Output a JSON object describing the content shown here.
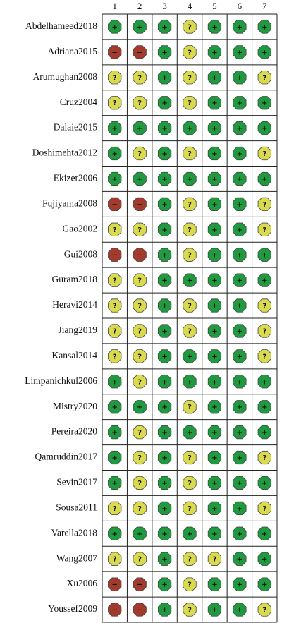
{
  "table": {
    "columns": [
      1,
      2,
      3,
      4,
      5,
      6,
      7
    ],
    "judgment_colors": {
      "+": "#1f9a3e",
      "?": "#d9da4e",
      "−": "#a23b2c"
    },
    "rows": [
      {
        "label": "Abdelhameed2018",
        "judgments": [
          "+",
          "+",
          "+",
          "?",
          "+",
          "+",
          "+"
        ]
      },
      {
        "label": "Adriana2015",
        "judgments": [
          "−",
          "−",
          "+",
          "?",
          "+",
          "+",
          "+"
        ]
      },
      {
        "label": "Arumughan2008",
        "judgments": [
          "?",
          "?",
          "+",
          "?",
          "+",
          "+",
          "?"
        ]
      },
      {
        "label": "Cruz2004",
        "judgments": [
          "?",
          "?",
          "+",
          "?",
          "+",
          "+",
          "+"
        ]
      },
      {
        "label": "Dalaie2015",
        "judgments": [
          "+",
          "+",
          "+",
          "+",
          "+",
          "+",
          "+"
        ]
      },
      {
        "label": "Doshimehta2012",
        "judgments": [
          "+",
          "?",
          "+",
          "?",
          "+",
          "+",
          "?"
        ]
      },
      {
        "label": "Ekizer2006",
        "judgments": [
          "+",
          "+",
          "+",
          "+",
          "+",
          "+",
          "+"
        ]
      },
      {
        "label": "Fujiyama2008",
        "judgments": [
          "−",
          "−",
          "+",
          "?",
          "+",
          "+",
          "?"
        ]
      },
      {
        "label": "Gao2002",
        "judgments": [
          "?",
          "?",
          "+",
          "?",
          "+",
          "+",
          "?"
        ]
      },
      {
        "label": "Gui2008",
        "judgments": [
          "−",
          "−",
          "+",
          "?",
          "+",
          "+",
          "+"
        ]
      },
      {
        "label": "Guram2018",
        "judgments": [
          "?",
          "?",
          "+",
          "+",
          "+",
          "+",
          "+"
        ]
      },
      {
        "label": "Heravi2014",
        "judgments": [
          "?",
          "?",
          "+",
          "?",
          "+",
          "+",
          "?"
        ]
      },
      {
        "label": "Jiang2019",
        "judgments": [
          "?",
          "?",
          "+",
          "?",
          "+",
          "+",
          "?"
        ]
      },
      {
        "label": "Kansal2014",
        "judgments": [
          "?",
          "?",
          "+",
          "+",
          "+",
          "+",
          "?"
        ]
      },
      {
        "label": "Limpanichkul2006",
        "judgments": [
          "+",
          "?",
          "+",
          "+",
          "+",
          "+",
          "+"
        ]
      },
      {
        "label": "Mistry2020",
        "judgments": [
          "+",
          "+",
          "+",
          "?",
          "+",
          "+",
          "+"
        ]
      },
      {
        "label": "Pereira2020",
        "judgments": [
          "+",
          "?",
          "+",
          "+",
          "+",
          "+",
          "+"
        ]
      },
      {
        "label": "Qamruddin2017",
        "judgments": [
          "+",
          "?",
          "+",
          "?",
          "+",
          "+",
          "?"
        ]
      },
      {
        "label": "Sevin2017",
        "judgments": [
          "+",
          "?",
          "+",
          "?",
          "+",
          "+",
          "+"
        ]
      },
      {
        "label": "Sousa2011",
        "judgments": [
          "?",
          "?",
          "+",
          "?",
          "+",
          "+",
          "?"
        ]
      },
      {
        "label": "Varella2018",
        "judgments": [
          "+",
          "+",
          "+",
          "+",
          "+",
          "+",
          "+"
        ]
      },
      {
        "label": "Wang2007",
        "judgments": [
          "?",
          "?",
          "+",
          "?",
          "?",
          "+",
          "+"
        ]
      },
      {
        "label": "Xu2006",
        "judgments": [
          "−",
          "−",
          "+",
          "?",
          "+",
          "+",
          "+"
        ]
      },
      {
        "label": "Youssef2009",
        "judgments": [
          "−",
          "−",
          "+",
          "?",
          "+",
          "+",
          "?"
        ]
      }
    ]
  }
}
